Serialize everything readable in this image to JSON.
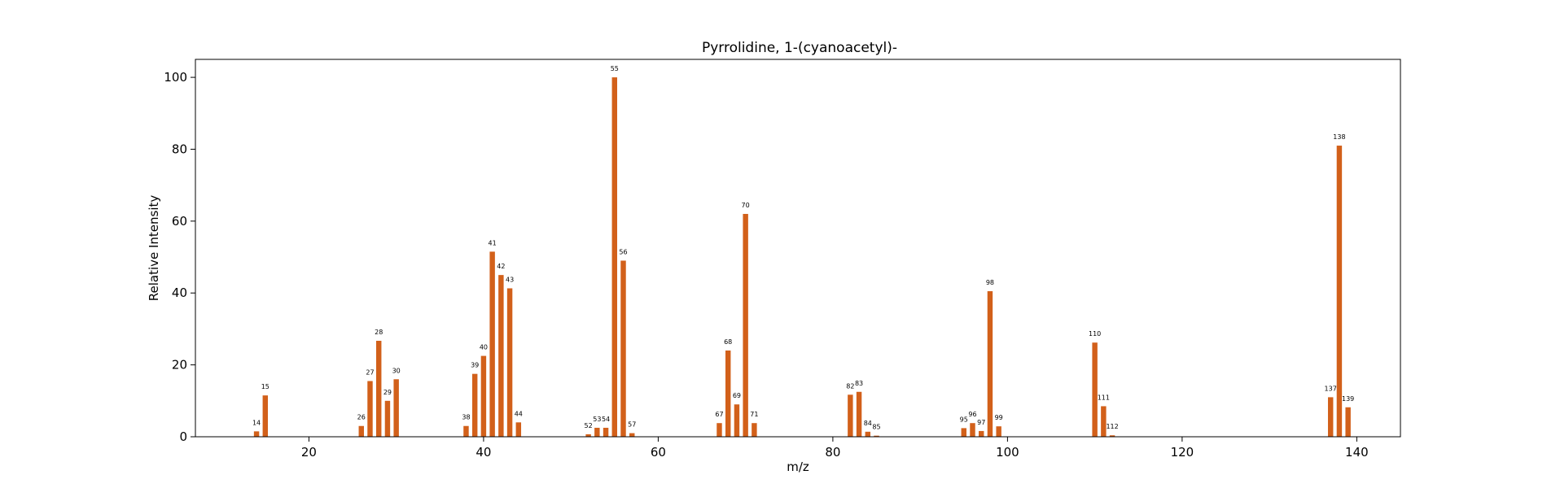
{
  "chart_data": {
    "type": "bar",
    "title": "Pyrrolidine, 1-(cyanoacetyl)-",
    "xlabel": "m/z",
    "ylabel": "Relative Intensity",
    "xlim": [
      7,
      145
    ],
    "ylim": [
      0,
      105
    ],
    "xticks": [
      20,
      40,
      60,
      80,
      100,
      120,
      140
    ],
    "yticks": [
      0,
      20,
      40,
      60,
      80,
      100
    ],
    "grid": false,
    "bar_color": "#d2601a",
    "points": [
      {
        "x": 14,
        "y": 1.5
      },
      {
        "x": 15,
        "y": 11.5
      },
      {
        "x": 26,
        "y": 3
      },
      {
        "x": 27,
        "y": 15.5
      },
      {
        "x": 28,
        "y": 26.7
      },
      {
        "x": 29,
        "y": 10
      },
      {
        "x": 30,
        "y": 16
      },
      {
        "x": 38,
        "y": 3
      },
      {
        "x": 39,
        "y": 17.5
      },
      {
        "x": 40,
        "y": 22.5
      },
      {
        "x": 41,
        "y": 51.5
      },
      {
        "x": 42,
        "y": 45
      },
      {
        "x": 43,
        "y": 41.3
      },
      {
        "x": 44,
        "y": 4
      },
      {
        "x": 52,
        "y": 0.7
      },
      {
        "x": 53,
        "y": 2.5
      },
      {
        "x": 54,
        "y": 2.5
      },
      {
        "x": 55,
        "y": 100
      },
      {
        "x": 56,
        "y": 49
      },
      {
        "x": 57,
        "y": 1
      },
      {
        "x": 67,
        "y": 3.8
      },
      {
        "x": 68,
        "y": 24
      },
      {
        "x": 69,
        "y": 9
      },
      {
        "x": 70,
        "y": 62
      },
      {
        "x": 71,
        "y": 3.8
      },
      {
        "x": 82,
        "y": 11.7
      },
      {
        "x": 83,
        "y": 12.5
      },
      {
        "x": 84,
        "y": 1.4
      },
      {
        "x": 85,
        "y": 0.3
      },
      {
        "x": 95,
        "y": 2.4
      },
      {
        "x": 96,
        "y": 3.8
      },
      {
        "x": 97,
        "y": 1.6
      },
      {
        "x": 98,
        "y": 40.5
      },
      {
        "x": 99,
        "y": 2.9
      },
      {
        "x": 110,
        "y": 26.2
      },
      {
        "x": 111,
        "y": 8.5
      },
      {
        "x": 112,
        "y": 0.4
      },
      {
        "x": 137,
        "y": 11
      },
      {
        "x": 138,
        "y": 81
      },
      {
        "x": 139,
        "y": 8.2
      }
    ]
  }
}
